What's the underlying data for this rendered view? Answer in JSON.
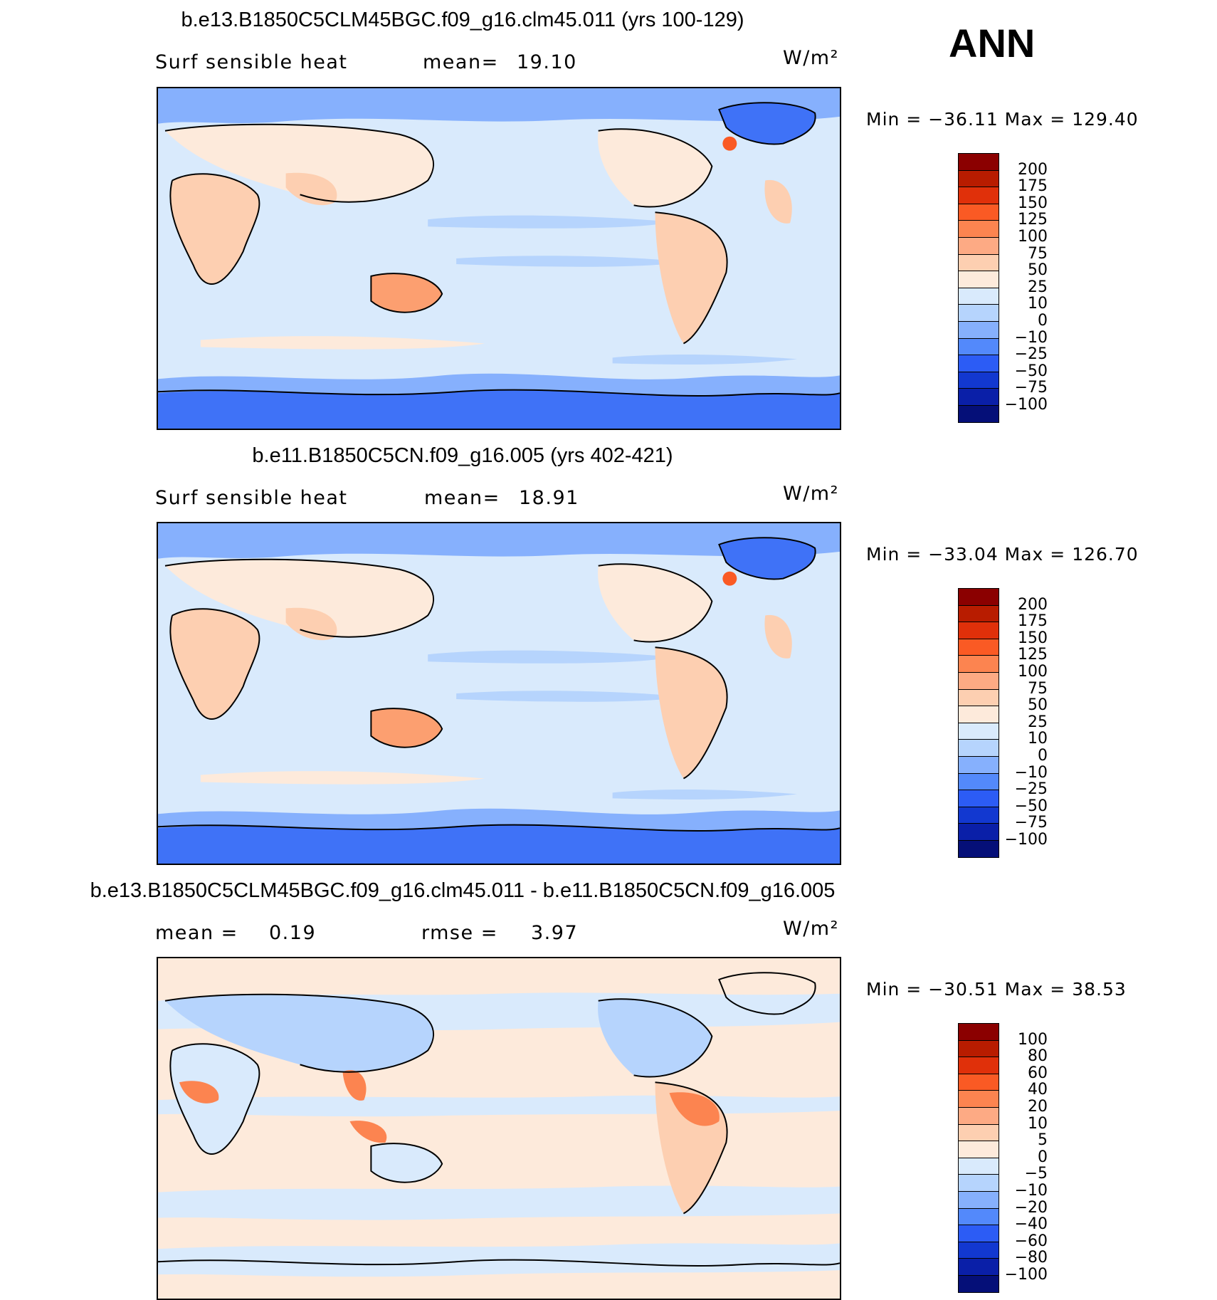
{
  "season": "ANN",
  "panels": [
    {
      "title": "b.e13.B1850C5CLM45BGC.f09_g16.clm45.011 (yrs 100-129)",
      "left_label": "Surf  sensible  heat",
      "stat_label": "mean=",
      "stat_value": "19.10",
      "units": "W/m²",
      "minmax": "Min  =  −36.11  Max  =  129.40",
      "colorbar": {
        "labels": [
          "200",
          "175",
          "150",
          "125",
          "100",
          "75",
          "50",
          "25",
          "10",
          "0",
          "−10",
          "−25",
          "−50",
          "−75",
          "−100"
        ],
        "colors": [
          "#8b0000",
          "#b81c00",
          "#e0300a",
          "#fa5a24",
          "#fc8450",
          "#fdaa84",
          "#fdcfb1",
          "#fdeadb",
          "#d9eafc",
          "#b6d4fd",
          "#86b0fd",
          "#5389fb",
          "#2c5cf5",
          "#1238d0",
          "#0a1fa8",
          "#050f78"
        ]
      }
    },
    {
      "title": "b.e11.B1850C5CN.f09_g16.005 (yrs 402-421)",
      "left_label": "Surf  sensible  heat",
      "stat_label": "mean=",
      "stat_value": "18.91",
      "units": "W/m²",
      "minmax": "Min  =  −33.04  Max  =  126.70",
      "colorbar": {
        "labels": [
          "200",
          "175",
          "150",
          "125",
          "100",
          "75",
          "50",
          "25",
          "10",
          "0",
          "−10",
          "−25",
          "−50",
          "−75",
          "−100"
        ],
        "colors": [
          "#8b0000",
          "#b81c00",
          "#e0300a",
          "#fa5a24",
          "#fc8450",
          "#fdaa84",
          "#fdcfb1",
          "#fdeadb",
          "#d9eafc",
          "#b6d4fd",
          "#86b0fd",
          "#5389fb",
          "#2c5cf5",
          "#1238d0",
          "#0a1fa8",
          "#050f78"
        ]
      }
    },
    {
      "title": "b.e13.B1850C5CLM45BGC.f09_g16.clm45.011 - b.e11.B1850C5CN.f09_g16.005",
      "left_label": "mean  =",
      "left_value": "0.19",
      "stat_label": "rmse  =",
      "stat_value": "3.97",
      "units": "W/m²",
      "minmax": "Min  =  −30.51  Max  =    38.53",
      "colorbar": {
        "labels": [
          "100",
          "80",
          "60",
          "40",
          "20",
          "10",
          "5",
          "0",
          "−5",
          "−10",
          "−20",
          "−40",
          "−60",
          "−80",
          "−100"
        ],
        "colors": [
          "#8b0000",
          "#b81c00",
          "#e0300a",
          "#fa5a24",
          "#fc8450",
          "#fdaa84",
          "#fdcfb1",
          "#fdeadb",
          "#d9eafc",
          "#b6d4fd",
          "#86b0fd",
          "#5389fb",
          "#2c5cf5",
          "#1238d0",
          "#0a1fa8",
          "#050f78"
        ]
      }
    }
  ]
}
